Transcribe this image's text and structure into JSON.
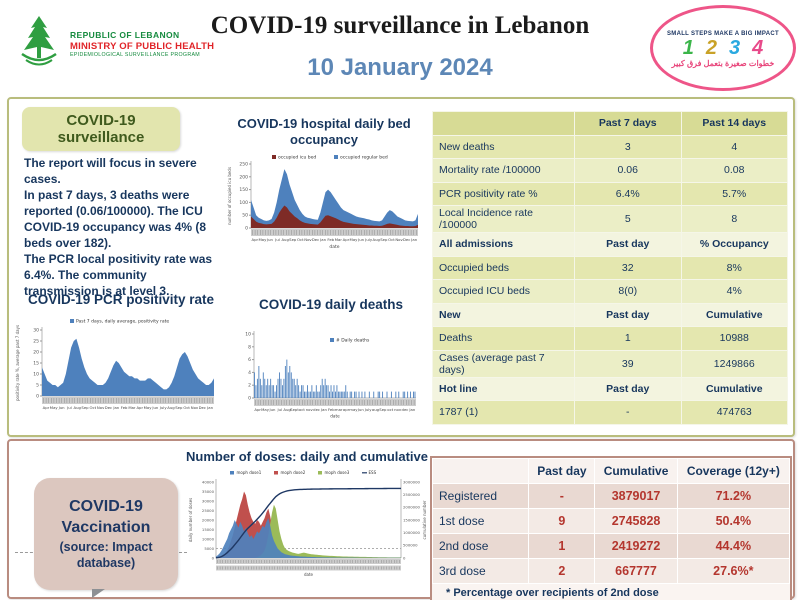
{
  "header": {
    "logo": {
      "line1": "REPUBLIC OF LEBANON",
      "line2": "MINISTRY OF PUBLIC HEALTH",
      "line3": "EPIDEMIOLOGICAL SURVEILLANCE PROGRAM"
    },
    "title": "COVID-19 surveillance in Lebanon",
    "date": "10 January 2024",
    "stamp": {
      "top": "SMALL STEPS MAKE A BIG IMPACT",
      "digits": [
        {
          "value": "1",
          "color": "#3bb54a"
        },
        {
          "value": "2",
          "color": "#c9a227"
        },
        {
          "value": "3",
          "color": "#2aa9e0"
        },
        {
          "value": "4",
          "color": "#e84a8a"
        }
      ],
      "bottom": "خطوات صغيرة بتعمل فرق كبير",
      "oval_color": "#ee5588"
    }
  },
  "surveillance": {
    "box_title": "COVID-19 surveillance",
    "summary": "The report will focus in severe cases.\nIn past 7 days, 3 deaths were reported  (0.06/100000). The ICU COVID-19 occupancy was 4% (8 beds over 182).\nThe PCR local positivity rate was 6.4%. The community transmission is at level 3."
  },
  "stats_table": {
    "rows": [
      {
        "kind": "head",
        "label": "",
        "c1": "Past 7 days",
        "c2": "Past 14 days"
      },
      {
        "kind": "data",
        "label": "New deaths",
        "c1": "3",
        "c2": "4"
      },
      {
        "kind": "data",
        "label": "Mortality rate /100000",
        "c1": "0.06",
        "c2": "0.08"
      },
      {
        "kind": "data",
        "label": "PCR positivity rate %",
        "c1": "6.4%",
        "c2": "5.7%"
      },
      {
        "kind": "data",
        "label": "Local Incidence rate /100000",
        "c1": "5",
        "c2": "8"
      },
      {
        "kind": "sub",
        "label": "All admissions",
        "c1": "Past day",
        "c2": "% Occupancy"
      },
      {
        "kind": "data",
        "label": "Occupied beds",
        "c1": "32",
        "c2": "8%"
      },
      {
        "kind": "data",
        "label": "Occupied ICU beds",
        "c1": "8(0)",
        "c2": "4%"
      },
      {
        "kind": "sub",
        "label": "New",
        "c1": "Past day",
        "c2": "Cumulative"
      },
      {
        "kind": "data",
        "label": "Deaths",
        "c1": "1",
        "c2": "10988"
      },
      {
        "kind": "data",
        "label": "Cases (average past 7 days)",
        "c1": "39",
        "c2": "1249866"
      },
      {
        "kind": "sub",
        "label": "Hot line",
        "c1": "Past day",
        "c2": "Cumulative"
      },
      {
        "kind": "data",
        "label": "1787 (1)",
        "c1": "-",
        "c2": "474763"
      }
    ]
  },
  "vaccination": {
    "bubble_line1": "COVID-19",
    "bubble_line2": "Vaccination",
    "bubble_subtitle": "(source: Impact database)"
  },
  "vax_table": {
    "headers": [
      "",
      "Past day",
      "Cumulative",
      "Coverage (12y+)"
    ],
    "rows": [
      {
        "label": "Registered",
        "past_day": "-",
        "cumulative": "3879017",
        "coverage": "71.2%"
      },
      {
        "label": "1st dose",
        "past_day": "9",
        "cumulative": "2745828",
        "coverage": "50.4%"
      },
      {
        "label": "2nd dose",
        "past_day": "1",
        "cumulative": "2419272",
        "coverage": "44.4%"
      },
      {
        "label": "3rd dose",
        "past_day": "2",
        "cumulative": "667777",
        "coverage": "27.6%*"
      }
    ],
    "footnote": "* Percentage over recipients of 2nd dose",
    "value_color": "#b4362e"
  },
  "chart_data": [
    {
      "id": "bed_occupancy",
      "type": "area",
      "stacked": true,
      "title": "COVID-19 hospital daily bed occupancy",
      "legend": [
        "occupied icu bed",
        "occupied regular bed"
      ],
      "colors": [
        "#7e2b26",
        "#4e81bd"
      ],
      "xlabel": "date",
      "ylabel": "number of occupied icu beds",
      "ylim": [
        0,
        250
      ],
      "yticks": [
        0,
        50,
        100,
        150,
        200,
        250
      ],
      "months": [
        "Apr",
        "May",
        "Jun",
        "Jul",
        "Aug",
        "Sep",
        "Oct",
        "Nov",
        "Dec",
        "Jan",
        "Feb",
        "Mar",
        "Apr",
        "May",
        "Jun",
        "July",
        "Aug",
        "Sep",
        "Oct",
        "Nov",
        "Dec",
        "Jan"
      ],
      "series": [
        {
          "name": "occupied icu bed",
          "values": [
            45,
            35,
            25,
            20,
            18,
            15,
            14,
            15,
            16,
            25,
            40,
            60,
            75,
            88,
            80,
            65,
            55,
            45,
            38,
            30,
            24,
            20,
            18,
            16,
            15,
            14,
            13,
            22,
            35,
            48,
            50,
            46,
            42,
            38,
            33,
            28,
            24,
            22,
            20,
            18,
            16,
            15,
            14,
            13,
            12,
            11,
            10,
            10,
            9,
            9,
            8,
            9,
            12,
            16,
            18,
            16,
            14,
            12,
            10,
            9,
            8,
            8,
            7,
            7,
            8,
            12
          ]
        },
        {
          "name": "occupied regular bed",
          "values": [
            65,
            45,
            25,
            20,
            17,
            15,
            14,
            15,
            19,
            35,
            60,
            90,
            115,
            142,
            130,
            105,
            85,
            65,
            52,
            40,
            31,
            25,
            22,
            22,
            20,
            19,
            19,
            38,
            65,
            92,
            100,
            94,
            83,
            72,
            62,
            52,
            46,
            43,
            40,
            37,
            34,
            30,
            28,
            27,
            26,
            24,
            23,
            20,
            19,
            18,
            18,
            21,
            33,
            44,
            52,
            49,
            41,
            33,
            30,
            26,
            22,
            20,
            20,
            19,
            22,
            43
          ]
        }
      ]
    },
    {
      "id": "pcr_positivity",
      "type": "area",
      "title": "COVID-19 PCR positivity rate",
      "legend": [
        "Past 7 days, daily average, positivity rate"
      ],
      "colors": [
        "#4e81bd"
      ],
      "xlabel": "date",
      "ylabel": "positivity rate %, average past 7 days",
      "ylim": [
        0,
        30
      ],
      "yticks": [
        0,
        5,
        10,
        15,
        20,
        25,
        30
      ],
      "months": [
        "Apr",
        "May",
        "Jun",
        "Jul",
        "Aug",
        "Sep",
        "Oct",
        "Nov",
        "Dec",
        "Jan",
        "Feb",
        "Mar",
        "Apr",
        "May",
        "Jun",
        "July",
        "Aug",
        "Sep",
        "Oct",
        "Nov",
        "Dec",
        "Jan"
      ],
      "values": [
        13,
        10,
        7,
        6,
        5,
        5,
        4,
        5,
        6,
        10,
        16,
        22,
        25,
        26,
        22,
        17,
        13,
        10,
        8,
        7,
        6,
        5,
        5,
        5,
        6,
        8,
        11,
        14,
        16,
        15,
        13,
        11,
        10,
        9,
        9,
        8,
        8,
        7,
        7,
        7,
        8,
        8,
        7,
        6,
        5,
        4,
        3,
        3,
        4,
        6,
        9,
        13,
        17,
        19,
        20,
        18,
        15,
        12,
        10,
        8,
        7,
        6,
        5,
        5,
        6,
        8
      ]
    },
    {
      "id": "daily_deaths",
      "type": "bar",
      "title": "COVID-19 daily deaths",
      "legend": [
        "# Daily deaths"
      ],
      "colors": [
        "#4e81bd"
      ],
      "xlabel": "date",
      "ylim": [
        0,
        10
      ],
      "yticks": [
        0,
        2,
        4,
        6,
        8,
        10
      ],
      "months": [
        "Apr",
        "May",
        "Jun",
        "Jul",
        "Aug",
        "Sept",
        "oct",
        "nov",
        "dec",
        "Jan",
        "Feb",
        "mar",
        "apr",
        "may",
        "Jun",
        "July",
        "aug",
        "Sep",
        "oct",
        "nov",
        "dec",
        "Jan"
      ],
      "values": [
        4,
        2,
        3,
        5,
        3,
        2,
        4,
        3,
        2,
        3,
        2,
        3,
        2,
        2,
        1,
        2,
        3,
        4,
        3,
        2,
        3,
        5,
        6,
        4,
        5,
        4,
        3,
        3,
        2,
        3,
        2,
        1,
        2,
        2,
        1,
        1,
        2,
        1,
        1,
        2,
        1,
        1,
        2,
        1,
        1,
        2,
        3,
        2,
        3,
        2,
        2,
        1,
        2,
        1,
        2,
        1,
        2,
        1,
        1,
        1,
        1,
        1,
        2,
        1,
        0,
        1,
        1,
        0,
        1,
        1,
        0,
        1,
        0,
        1,
        0,
        1,
        0,
        0,
        1,
        0,
        0,
        1,
        0,
        0,
        1,
        1,
        0,
        1,
        0,
        0,
        1,
        0,
        0,
        1,
        0,
        0,
        1,
        0,
        1,
        0,
        0,
        1,
        1,
        0,
        1,
        0,
        1,
        0,
        1,
        1
      ]
    },
    {
      "id": "vaccination_doses",
      "type": "area+line",
      "title": "Number of doses: daily and cumulative",
      "legend": [
        "moph dose1",
        "moph dose2",
        "moph dose3",
        "ESS"
      ],
      "colors": [
        "#4e81bd",
        "#c0504d",
        "#9bbb59",
        "#1f3864"
      ],
      "xlabel": "date",
      "ylabel_left": "daily number of doses",
      "ylabel_right": "cumulative number",
      "ylim_left": [
        0,
        40000
      ],
      "yticks_left": [
        0,
        5000,
        10000,
        15000,
        20000,
        25000,
        30000,
        35000,
        40000
      ],
      "ylim_right": [
        0,
        3000000
      ],
      "yticks_right": [
        0,
        500000,
        1000000,
        1500000,
        2000000,
        2500000,
        3000000
      ],
      "dashed_gridline": 5000,
      "series": [
        {
          "name": "moph dose1",
          "values": [
            800,
            1500,
            2500,
            4000,
            6000,
            8000,
            10000,
            13000,
            15000,
            17000,
            20000,
            18000,
            16000,
            19000,
            17000,
            14000,
            16000,
            13000,
            11000,
            12000,
            10000,
            12000,
            14000,
            13000,
            15000,
            17000,
            16000,
            19000,
            21000,
            17000,
            12000,
            9000,
            7000,
            5000,
            4000,
            3000,
            2500,
            2000,
            1800,
            1500,
            1300,
            1200,
            1100,
            1000,
            900,
            800,
            800,
            700,
            700,
            600,
            600,
            500,
            500,
            500,
            400,
            400,
            400,
            350,
            350,
            300,
            300,
            280,
            260,
            250,
            240,
            230,
            220,
            210,
            200,
            200,
            190,
            190,
            180,
            180,
            170,
            170,
            160,
            160,
            150,
            150,
            140,
            140,
            130,
            130,
            120,
            120,
            110,
            110,
            100,
            100,
            100,
            100,
            100,
            100,
            100,
            100,
            100,
            100,
            100,
            100
          ]
        },
        {
          "name": "moph dose2",
          "values": [
            100,
            200,
            400,
            800,
            1500,
            2500,
            4000,
            6000,
            9000,
            12000,
            16000,
            20000,
            24000,
            28000,
            31000,
            35000,
            33000,
            28000,
            24000,
            21000,
            19000,
            18000,
            20000,
            19000,
            17000,
            19000,
            21000,
            24000,
            26000,
            22000,
            17000,
            13000,
            10000,
            7000,
            5000,
            4000,
            3200,
            2600,
            2200,
            1900,
            1600,
            1400,
            1200,
            1100,
            1000,
            900,
            800,
            800,
            700,
            700,
            600,
            600,
            500,
            500,
            450,
            400,
            400,
            350,
            350,
            300,
            300,
            290,
            280,
            270,
            260,
            250,
            240,
            230,
            220,
            210,
            200,
            200,
            190,
            190,
            180,
            180,
            170,
            170,
            160,
            160,
            150,
            150,
            140,
            140,
            130,
            130,
            120,
            120,
            110,
            110,
            100,
            100,
            100,
            100,
            100,
            100,
            100,
            100,
            100,
            100
          ]
        },
        {
          "name": "moph dose3",
          "values": [
            0,
            0,
            0,
            0,
            0,
            0,
            0,
            0,
            0,
            0,
            0,
            0,
            0,
            0,
            0,
            0,
            0,
            0,
            0,
            0,
            0,
            0,
            300,
            800,
            1500,
            2500,
            4000,
            7000,
            12000,
            18000,
            24000,
            28000,
            26000,
            20000,
            14000,
            10000,
            7000,
            5000,
            4200,
            3600,
            3200,
            2800,
            2600,
            2400,
            2200,
            2400,
            2600,
            2800,
            2600,
            2400,
            2200,
            2000,
            1900,
            1800,
            1700,
            1600,
            1500,
            1400,
            1300,
            1250,
            1200,
            1150,
            1100,
            1050,
            1000,
            950,
            900,
            850,
            800,
            780,
            760,
            740,
            720,
            700,
            680,
            660,
            640,
            620,
            600,
            580,
            560,
            540,
            520,
            500,
            480,
            460,
            440,
            420,
            400,
            390,
            380,
            370,
            360,
            350,
            340,
            330,
            320,
            310,
            300,
            300
          ]
        }
      ],
      "cumulative": [
        5000,
        15000,
        30000,
        60000,
        100000,
        150000,
        210000,
        280000,
        350000,
        430000,
        520000,
        610000,
        700000,
        800000,
        900000,
        1000000,
        1090000,
        1170000,
        1240000,
        1310000,
        1380000,
        1450000,
        1530000,
        1610000,
        1690000,
        1780000,
        1870000,
        1970000,
        2070000,
        2160000,
        2250000,
        2340000,
        2420000,
        2480000,
        2530000,
        2570000,
        2600000,
        2625000,
        2645000,
        2660000,
        2672000,
        2682000,
        2690000,
        2696000,
        2701000,
        2705000,
        2708000,
        2711000,
        2713000,
        2715000,
        2717000,
        2719000,
        2720000,
        2721000,
        2722000,
        2723000,
        2724000,
        2725000,
        2726000,
        2727000,
        2728000,
        2728500,
        2729000,
        2729500,
        2730000,
        2730500,
        2731000,
        2731500,
        2732000,
        2732500,
        2733000,
        2733500,
        2734000,
        2734500,
        2735000,
        2735500,
        2736000,
        2736500,
        2737000,
        2737500,
        2738000,
        2738500,
        2739000,
        2739500,
        2740000,
        2740500,
        2741000,
        2741500,
        2742000,
        2742500,
        2743000,
        2743500,
        2744000,
        2744500,
        2745000,
        2745200,
        2745400,
        2745600,
        2745800,
        2745828
      ]
    }
  ]
}
